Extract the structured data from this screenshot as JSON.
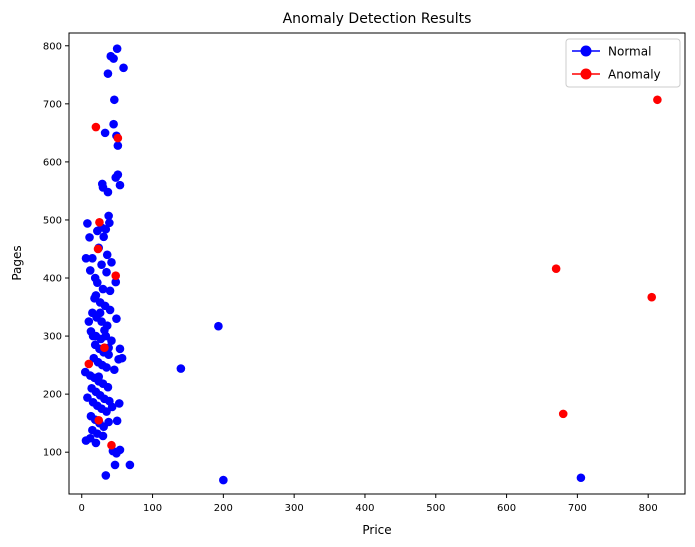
{
  "chart_data": {
    "type": "scatter",
    "title": "Anomaly Detection Results",
    "xlabel": "Price",
    "ylabel": "Pages",
    "xlim": [
      -18,
      852
    ],
    "ylim": [
      28,
      822
    ],
    "x_ticks": [
      0,
      100,
      200,
      300,
      400,
      500,
      600,
      700,
      800
    ],
    "y_ticks": [
      100,
      200,
      300,
      400,
      500,
      600,
      700,
      800
    ],
    "grid": false,
    "legend": {
      "position": "top-right"
    },
    "colors": {
      "normal": "#0000ff",
      "anomaly": "#ff0000"
    },
    "series": [
      {
        "name": "Normal",
        "color": "#0000ff",
        "points": [
          [
            50,
            795
          ],
          [
            41,
            782
          ],
          [
            45,
            778
          ],
          [
            59,
            762
          ],
          [
            37,
            752
          ],
          [
            46,
            707
          ],
          [
            45,
            665
          ],
          [
            49,
            645
          ],
          [
            33,
            650
          ],
          [
            51,
            628
          ],
          [
            48,
            573
          ],
          [
            51,
            578
          ],
          [
            29,
            562
          ],
          [
            30,
            556
          ],
          [
            54,
            560
          ],
          [
            37,
            548
          ],
          [
            38,
            507
          ],
          [
            39,
            495
          ],
          [
            34,
            484
          ],
          [
            31,
            471
          ],
          [
            8,
            494
          ],
          [
            11,
            470
          ],
          [
            22,
            481
          ],
          [
            28,
            487
          ],
          [
            24,
            452
          ],
          [
            36,
            440
          ],
          [
            42,
            427
          ],
          [
            6,
            434
          ],
          [
            15,
            434
          ],
          [
            12,
            413
          ],
          [
            19,
            400
          ],
          [
            28,
            423
          ],
          [
            35,
            410
          ],
          [
            48,
            393
          ],
          [
            22,
            392
          ],
          [
            30,
            381
          ],
          [
            40,
            378
          ],
          [
            18,
            365
          ],
          [
            26,
            358
          ],
          [
            33,
            352
          ],
          [
            40,
            345
          ],
          [
            15,
            340
          ],
          [
            21,
            332
          ],
          [
            28,
            325
          ],
          [
            36,
            318
          ],
          [
            49,
            330
          ],
          [
            10,
            325
          ],
          [
            13,
            308
          ],
          [
            20,
            300
          ],
          [
            27,
            295
          ],
          [
            34,
            300
          ],
          [
            42,
            292
          ],
          [
            19,
            285
          ],
          [
            25,
            278
          ],
          [
            31,
            272
          ],
          [
            38,
            268
          ],
          [
            54,
            278
          ],
          [
            57,
            262
          ],
          [
            52,
            260
          ],
          [
            17,
            262
          ],
          [
            23,
            255
          ],
          [
            29,
            250
          ],
          [
            35,
            246
          ],
          [
            46,
            242
          ],
          [
            5,
            238
          ],
          [
            12,
            232
          ],
          [
            18,
            228
          ],
          [
            24,
            222
          ],
          [
            30,
            218
          ],
          [
            37,
            212
          ],
          [
            14,
            210
          ],
          [
            20,
            204
          ],
          [
            26,
            198
          ],
          [
            32,
            192
          ],
          [
            39,
            188
          ],
          [
            8,
            194
          ],
          [
            16,
            186
          ],
          [
            22,
            180
          ],
          [
            28,
            175
          ],
          [
            35,
            170
          ],
          [
            43,
            178
          ],
          [
            53,
            184
          ],
          [
            13,
            162
          ],
          [
            19,
            156
          ],
          [
            25,
            150
          ],
          [
            31,
            144
          ],
          [
            38,
            152
          ],
          [
            50,
            154
          ],
          [
            15,
            138
          ],
          [
            22,
            132
          ],
          [
            30,
            128
          ],
          [
            6,
            120
          ],
          [
            12,
            124
          ],
          [
            20,
            116
          ],
          [
            44,
            102
          ],
          [
            49,
            98
          ],
          [
            54,
            104
          ],
          [
            47,
            78
          ],
          [
            68,
            78
          ],
          [
            34,
            60
          ],
          [
            140,
            244
          ],
          [
            193,
            317
          ],
          [
            200,
            52
          ],
          [
            705,
            56
          ],
          [
            20,
            370
          ],
          [
            26,
            340
          ],
          [
            32,
            310
          ],
          [
            38,
            280
          ],
          [
            16,
            300
          ],
          [
            24,
            230
          ]
        ]
      },
      {
        "name": "Anomaly",
        "color": "#ff0000",
        "points": [
          [
            20,
            660
          ],
          [
            51,
            641
          ],
          [
            25,
            496
          ],
          [
            23,
            450
          ],
          [
            48,
            404
          ],
          [
            10,
            252
          ],
          [
            32,
            280
          ],
          [
            24,
            155
          ],
          [
            42,
            112
          ],
          [
            813,
            707
          ],
          [
            670,
            416
          ],
          [
            805,
            367
          ],
          [
            680,
            166
          ]
        ]
      }
    ]
  }
}
